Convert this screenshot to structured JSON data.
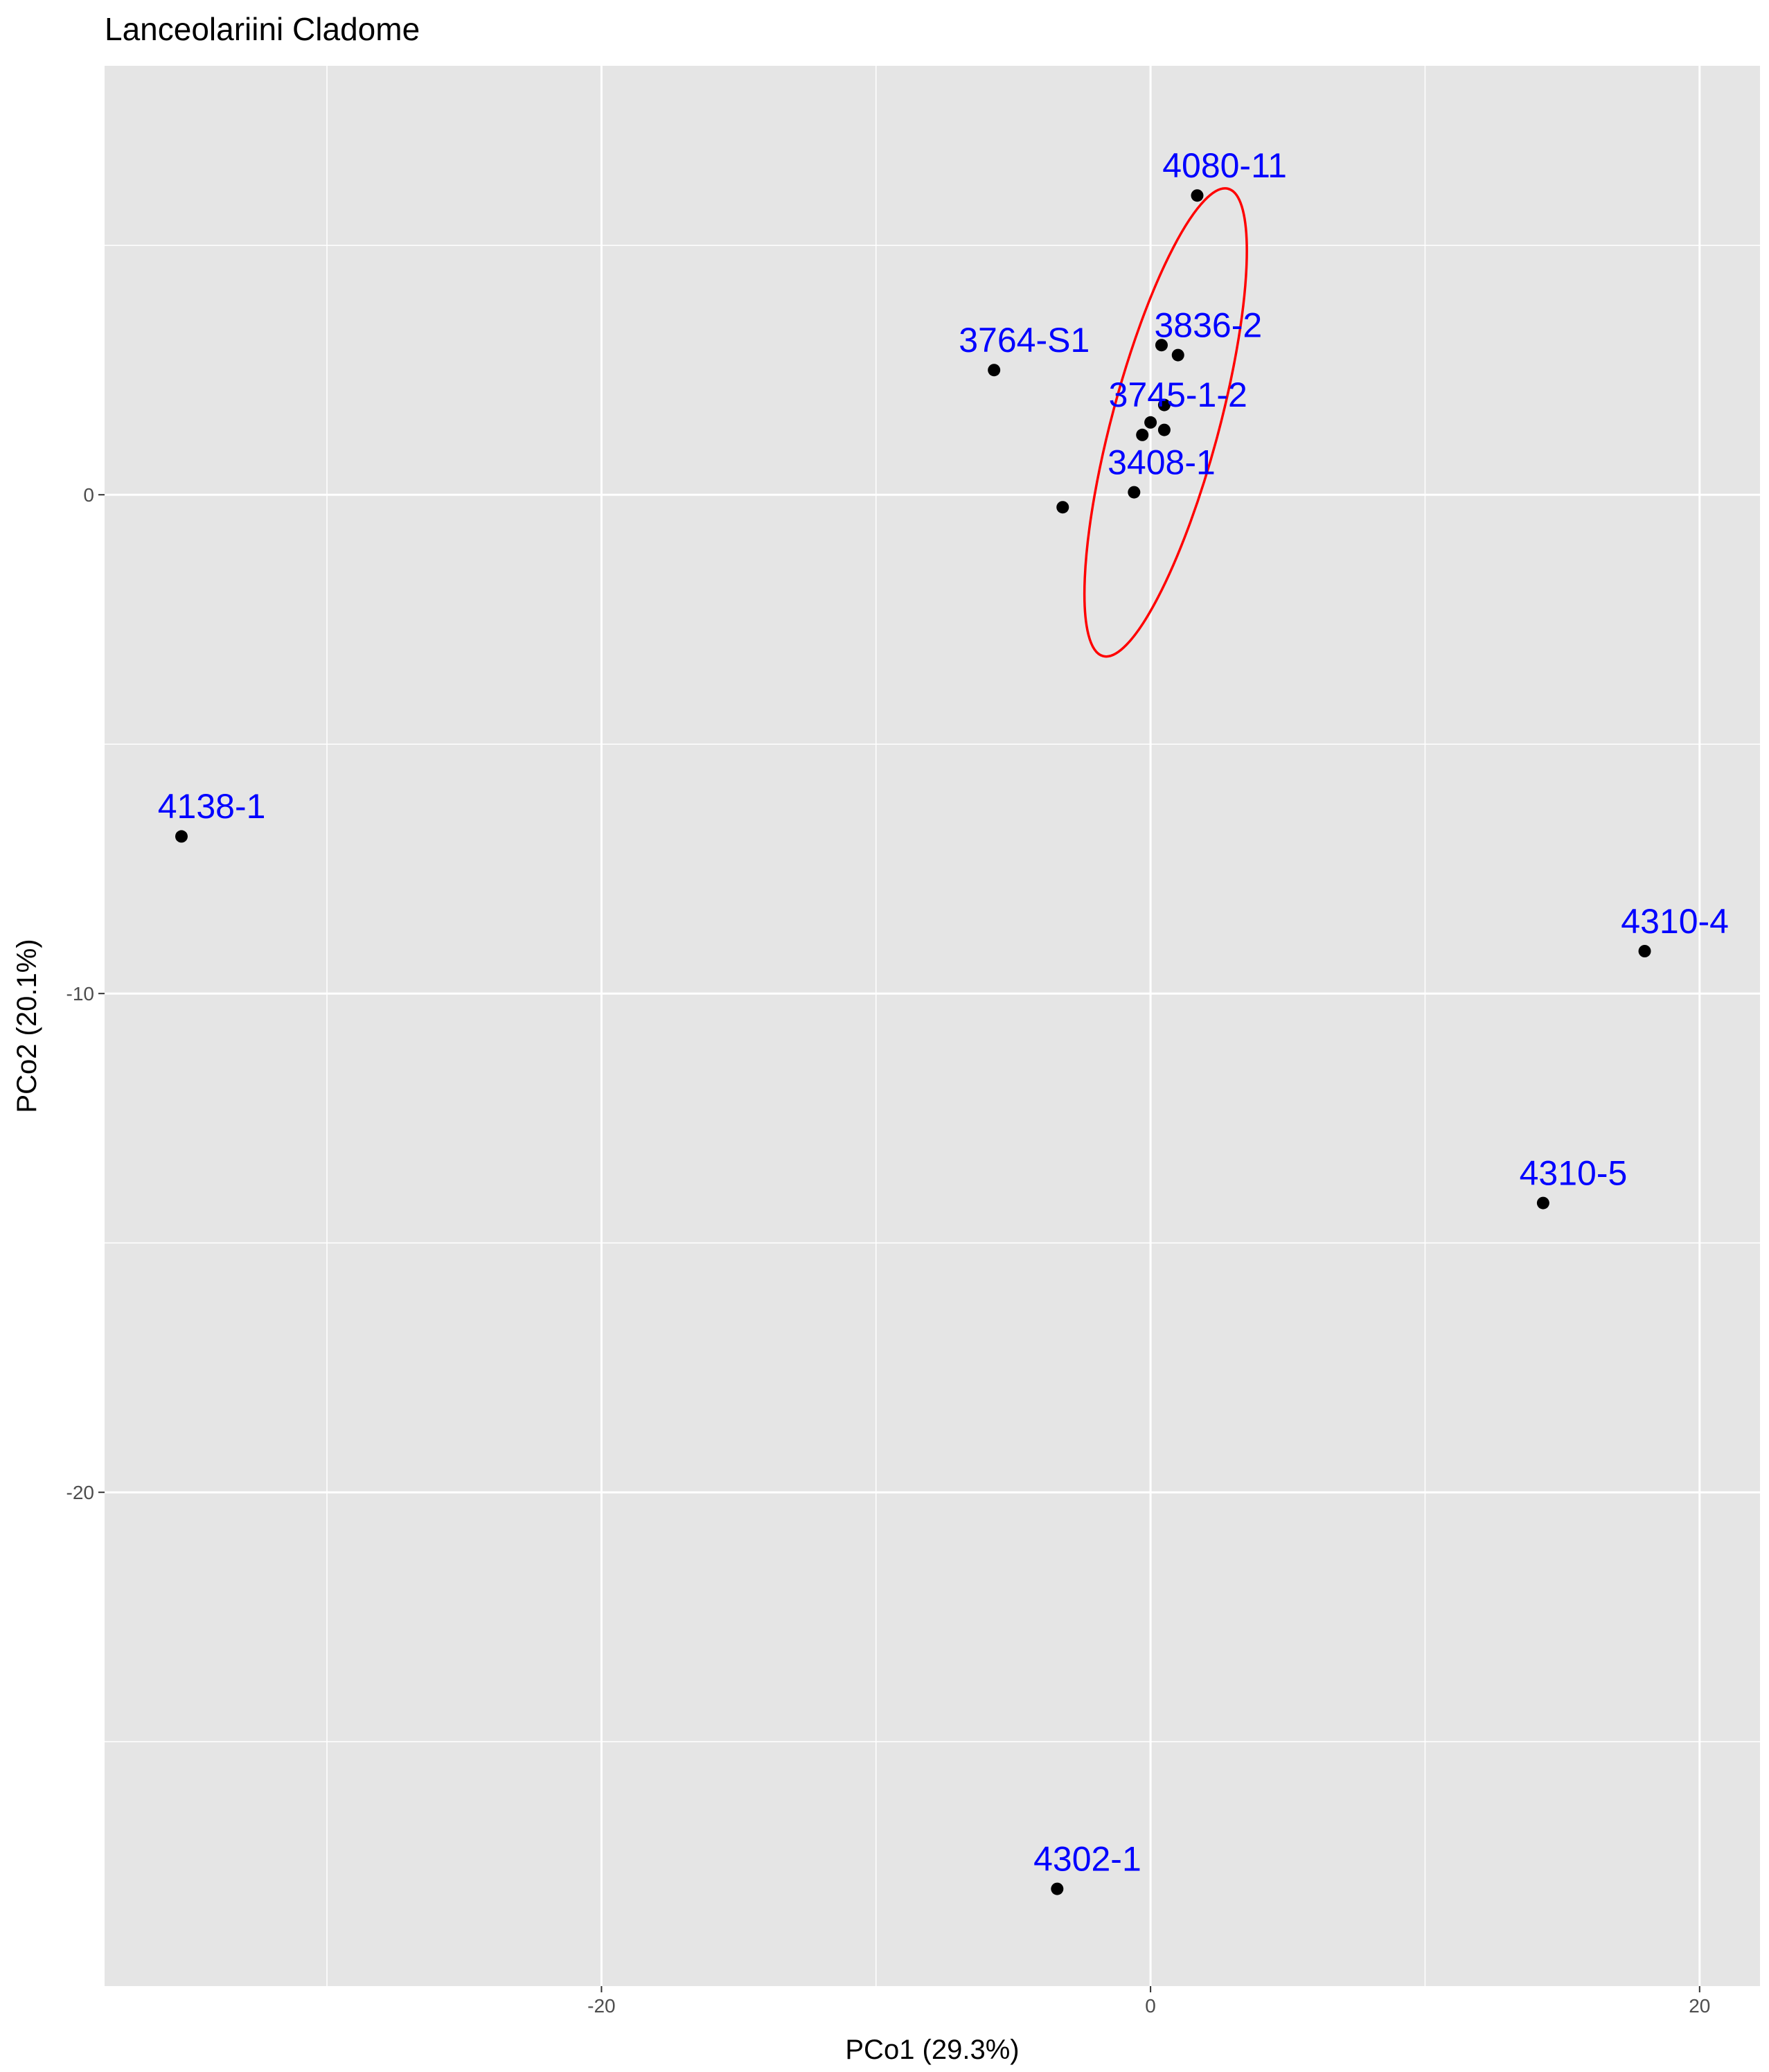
{
  "chart_data": {
    "type": "scatter",
    "title": "Lanceolariini Cladome",
    "xlabel": "PCo1 (29.3%)",
    "ylabel": "PCo2 (20.1%)",
    "xlim": [
      -38.1,
      22.2
    ],
    "ylim": [
      -29.9,
      8.6
    ],
    "x_major_ticks": [
      -20,
      0,
      20
    ],
    "x_minor_gridlines": [
      -30,
      -10,
      10
    ],
    "y_major_ticks": [
      0,
      -10,
      -20
    ],
    "y_minor_gridlines": [
      5,
      -5,
      -15,
      -25
    ],
    "grid": true,
    "legend": "none",
    "colors": {
      "panel": "#e5e5e5",
      "gridline": "#ffffff",
      "point": "#000000",
      "label": "#0000ff",
      "ellipse": "#ff0000"
    },
    "points": [
      {
        "x": 1.7,
        "y": 6.0
      },
      {
        "x": -5.7,
        "y": 2.5
      },
      {
        "x": 0.4,
        "y": 3.0
      },
      {
        "x": 1.0,
        "y": 2.8
      },
      {
        "x": 0.5,
        "y": 1.8
      },
      {
        "x": 0.0,
        "y": 1.45
      },
      {
        "x": 0.5,
        "y": 1.3
      },
      {
        "x": -0.3,
        "y": 1.2
      },
      {
        "x": -0.6,
        "y": 0.05
      },
      {
        "x": -3.2,
        "y": -0.25
      },
      {
        "x": -35.3,
        "y": -6.85
      },
      {
        "x": 18.0,
        "y": -9.15
      },
      {
        "x": 14.3,
        "y": -14.2
      },
      {
        "x": -3.4,
        "y": -27.95
      }
    ],
    "labels": [
      {
        "text": "4080-11",
        "x": 2.7,
        "y": 6.6
      },
      {
        "text": "3764-S1",
        "x": -4.6,
        "y": 3.1
      },
      {
        "text": "3836-2",
        "x": 2.1,
        "y": 3.4
      },
      {
        "text": "3745-1-2",
        "x": 1.0,
        "y": 2.0
      },
      {
        "text": "3408-1",
        "x": 0.4,
        "y": 0.65
      },
      {
        "text": "4138-1",
        "x": -34.2,
        "y": -6.25
      },
      {
        "text": "4310-4",
        "x": 19.1,
        "y": -8.55
      },
      {
        "text": "4310-5",
        "x": 15.4,
        "y": -13.6
      },
      {
        "text": "4302-1",
        "x": -2.3,
        "y": -27.35
      }
    ],
    "ellipse": {
      "cx": 0.55,
      "cy": 1.45,
      "rx": 1.95,
      "ry": 4.85,
      "rotation_deg": 15
    }
  }
}
